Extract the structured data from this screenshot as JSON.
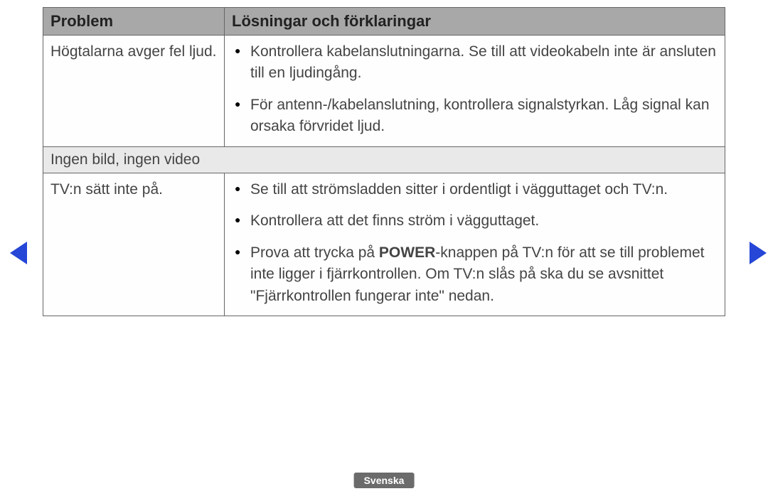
{
  "colors": {
    "header_bg": "#a8a8a8",
    "section_bg": "#e9e9e9",
    "border": "#666666",
    "text": "#444444",
    "arrow": "#2546d6",
    "badge_bg": "#6b6b6b",
    "badge_text": "#ffffff"
  },
  "header": {
    "problem": "Problem",
    "solutions": "Lösningar och förklaringar"
  },
  "rows": {
    "r1": {
      "problem": "Högtalarna avger fel ljud.",
      "sol1": "Kontrollera kabelanslutningarna. Se till att videokabeln inte är ansluten till en ljudingång.",
      "sol2": "För antenn-/kabelanslutning, kontrollera signalstyrkan. Låg signal kan orsaka förvridet ljud."
    },
    "section1": "Ingen bild, ingen video",
    "r2": {
      "problem": "TV:n sätt inte på.",
      "sol1": "Se till att strömsladden sitter i ordentligt i vägguttaget och TV:n.",
      "sol2": "Kontrollera att det finns ström i vägguttaget.",
      "sol3_pre": "Prova att trycka på ",
      "sol3_bold": "POWER",
      "sol3_post": "-knappen på TV:n för att se till problemet inte ligger i fjärrkontrollen. Om TV:n slås på ska du se avsnittet \"Fjärrkontrollen fungerar inte\" nedan."
    }
  },
  "footer": {
    "language": "Svenska"
  }
}
